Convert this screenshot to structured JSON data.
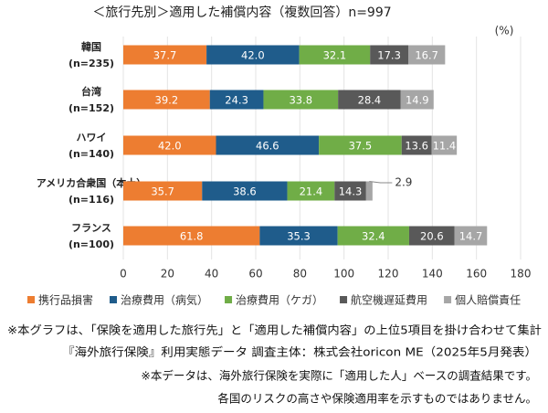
{
  "chart_data": {
    "type": "stacked-bar-horizontal",
    "title": "＜旅行先別＞適用した補償内容（複数回答）n=997",
    "unit_label": "(%)",
    "categories": [
      "韓国",
      "台湾",
      "ハワイ",
      "アメリカ合衆国（本土）",
      "フランス"
    ],
    "category_notes": [
      "(n=235)",
      "(n=152)",
      "(n=140)",
      "(n=116)",
      "(n=100)"
    ],
    "series": [
      {
        "name": "携行品損害",
        "color": "#ed7d31",
        "values": [
          37.7,
          39.2,
          42.0,
          35.7,
          61.8
        ],
        "value_labels": [
          "37.7",
          "39.2",
          "42.0",
          "35.7",
          "61.8"
        ]
      },
      {
        "name": "治療費用（病気）",
        "color": "#1f5c8b",
        "values": [
          42.0,
          24.3,
          46.6,
          38.6,
          35.3
        ],
        "value_labels": [
          "42.0",
          "24.3",
          "46.6",
          "38.6",
          "35.3"
        ]
      },
      {
        "name": "治療費用（ケガ）",
        "color": "#70ad47",
        "values": [
          32.1,
          33.8,
          37.5,
          21.4,
          32.4
        ],
        "value_labels": [
          "32.1",
          "33.8",
          "37.5",
          "21.4",
          "32.4"
        ]
      },
      {
        "name": "航空機遅延費用",
        "color": "#595959",
        "values": [
          17.3,
          28.4,
          13.6,
          14.3,
          20.6
        ],
        "value_labels": [
          "17.3",
          "28.4",
          "13.6",
          "14.3",
          "20.6"
        ]
      },
      {
        "name": "個人賠償責任",
        "color": "#a6a6a6",
        "values": [
          16.7,
          14.9,
          11.4,
          2.9,
          14.7
        ],
        "value_labels": [
          "16.7",
          "14.9",
          "11.4",
          "2.9",
          "14.7"
        ]
      }
    ],
    "xlim": [
      0,
      180
    ],
    "xticks": [
      0,
      20,
      40,
      60,
      80,
      100,
      120,
      140,
      160,
      180
    ],
    "grid": true,
    "legend": "bottom"
  },
  "notes": [
    "※本グラフは、「保険を適用した旅行先」と「適用した補償内容」の上位5項目を掛け合わせて集計",
    "『海外旅行保険』利用実態データ 調査主体：株式会社oricon ME（2025年5月発表）",
    "※本データは、海外旅行保険を実際に「適用した人」ベースの調査結果です。",
    "各国のリスクの高さや保険適用率を示すものではありません。"
  ]
}
